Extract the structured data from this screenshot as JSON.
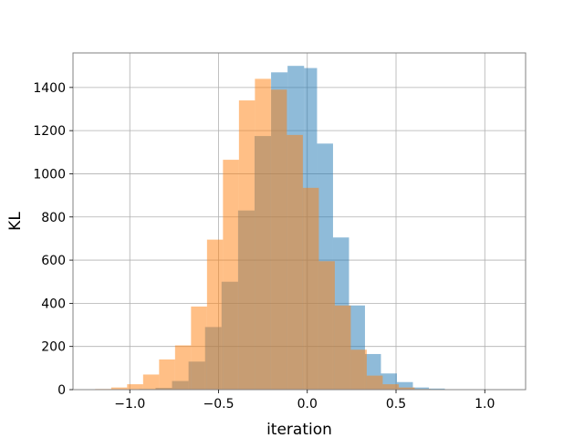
{
  "chart_data": {
    "type": "histogram",
    "title": "",
    "xlabel": "iteration",
    "ylabel": "KL",
    "xlim": [
      -1.32,
      1.23
    ],
    "ylim": [
      0,
      1560
    ],
    "grid": true,
    "xticks": [
      -1.0,
      -0.5,
      0.0,
      0.5,
      1.0
    ],
    "xtick_labels": [
      "−1.0",
      "−0.5",
      "0.0",
      "0.5",
      "1.0"
    ],
    "yticks": [
      0,
      200,
      400,
      600,
      800,
      1000,
      1200,
      1400
    ],
    "ytick_labels": [
      "0",
      "200",
      "400",
      "600",
      "800",
      "1000",
      "1200",
      "1400"
    ],
    "series": [
      {
        "color": "#1f77b4",
        "alpha": 0.5,
        "bins": [
          {
            "x0": -0.948,
            "x1": -0.855,
            "count": 3
          },
          {
            "x0": -0.855,
            "x1": -0.762,
            "count": 8
          },
          {
            "x0": -0.762,
            "x1": -0.669,
            "count": 40
          },
          {
            "x0": -0.669,
            "x1": -0.576,
            "count": 130
          },
          {
            "x0": -0.576,
            "x1": -0.483,
            "count": 290
          },
          {
            "x0": -0.483,
            "x1": -0.39,
            "count": 500
          },
          {
            "x0": -0.39,
            "x1": -0.297,
            "count": 830
          },
          {
            "x0": -0.297,
            "x1": -0.204,
            "count": 1175
          },
          {
            "x0": -0.204,
            "x1": -0.111,
            "count": 1470
          },
          {
            "x0": -0.111,
            "x1": -0.018,
            "count": 1500
          },
          {
            "x0": -0.018,
            "x1": 0.055,
            "count": 1490
          },
          {
            "x0": 0.055,
            "x1": 0.145,
            "count": 1140
          },
          {
            "x0": 0.145,
            "x1": 0.235,
            "count": 705
          },
          {
            "x0": 0.235,
            "x1": 0.325,
            "count": 390
          },
          {
            "x0": 0.325,
            "x1": 0.415,
            "count": 165
          },
          {
            "x0": 0.415,
            "x1": 0.505,
            "count": 75
          },
          {
            "x0": 0.505,
            "x1": 0.595,
            "count": 35
          },
          {
            "x0": 0.595,
            "x1": 0.685,
            "count": 10
          },
          {
            "x0": 0.685,
            "x1": 0.775,
            "count": 5
          },
          {
            "x0": 0.775,
            "x1": 0.865,
            "count": 2
          },
          {
            "x0": 0.865,
            "x1": 0.955,
            "count": 1
          }
        ]
      },
      {
        "color": "#ff7f0e",
        "alpha": 0.5,
        "bins": [
          {
            "x0": -1.195,
            "x1": -1.105,
            "count": 3
          },
          {
            "x0": -1.105,
            "x1": -1.015,
            "count": 10
          },
          {
            "x0": -1.015,
            "x1": -0.925,
            "count": 25
          },
          {
            "x0": -0.925,
            "x1": -0.835,
            "count": 70
          },
          {
            "x0": -0.835,
            "x1": -0.745,
            "count": 140
          },
          {
            "x0": -0.745,
            "x1": -0.655,
            "count": 205
          },
          {
            "x0": -0.655,
            "x1": -0.565,
            "count": 385
          },
          {
            "x0": -0.565,
            "x1": -0.475,
            "count": 695
          },
          {
            "x0": -0.475,
            "x1": -0.385,
            "count": 1065
          },
          {
            "x0": -0.385,
            "x1": -0.295,
            "count": 1340
          },
          {
            "x0": -0.295,
            "x1": -0.205,
            "count": 1440
          },
          {
            "x0": -0.205,
            "x1": -0.115,
            "count": 1390
          },
          {
            "x0": -0.115,
            "x1": -0.025,
            "count": 1180
          },
          {
            "x0": -0.025,
            "x1": 0.065,
            "count": 935
          },
          {
            "x0": 0.065,
            "x1": 0.155,
            "count": 595
          },
          {
            "x0": 0.155,
            "x1": 0.245,
            "count": 390
          },
          {
            "x0": 0.245,
            "x1": 0.335,
            "count": 185
          },
          {
            "x0": 0.335,
            "x1": 0.425,
            "count": 65
          },
          {
            "x0": 0.425,
            "x1": 0.515,
            "count": 25
          },
          {
            "x0": 0.515,
            "x1": 0.605,
            "count": 10
          },
          {
            "x0": 0.605,
            "x1": 0.695,
            "count": 3
          },
          {
            "x0": 0.695,
            "x1": 0.785,
            "count": 1
          }
        ]
      }
    ]
  }
}
